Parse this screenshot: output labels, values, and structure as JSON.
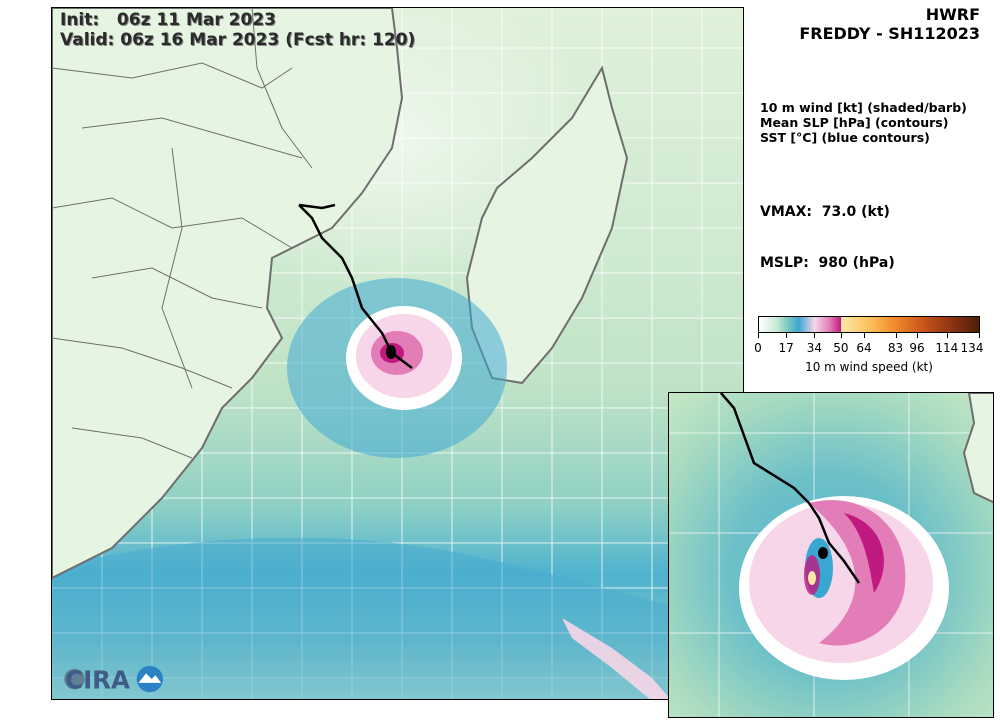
{
  "init_line": "Init:   06z 11 Mar 2023",
  "valid_line": "Valid: 06z 16 Mar 2023 (Fcst hr: 120)",
  "model": "HWRF",
  "storm": "FREDDY - SH112023",
  "legend_lines": [
    "10 m wind [kt] (shaded/barb)",
    "Mean SLP [hPa] (contours)",
    "SST [°C] (blue contours)"
  ],
  "vmax": "VMAX:  73.0 (kt)",
  "mslp": "MSLP:  980 (hPa)",
  "colorbar": {
    "ticks": [
      "0",
      "17",
      "34",
      "50",
      "64",
      "83",
      "96",
      "114",
      "134"
    ],
    "tick_values": [
      0,
      17,
      34,
      50,
      64,
      83,
      96,
      114,
      134
    ],
    "max": 134,
    "title": "10 m wind speed (kt)"
  },
  "logo_text": "CIRA",
  "colors": {
    "track": "#000000",
    "coast": "#6e6e6e",
    "storm_core": "#d6288f",
    "ocean_blue": "#3fa9d3"
  }
}
